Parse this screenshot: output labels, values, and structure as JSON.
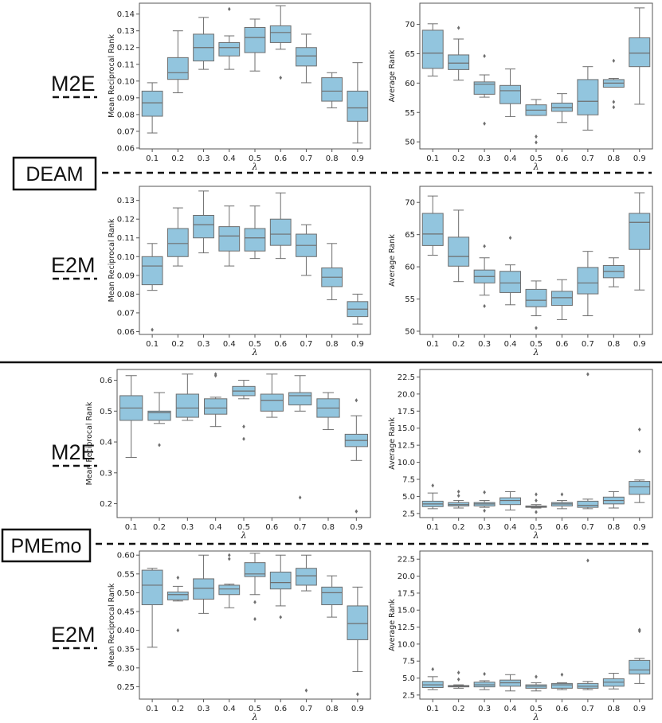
{
  "labels": {
    "deam": "DEAM",
    "pmemo": "PMEmo",
    "m2e": "M2E",
    "e2m": "E2M"
  },
  "colors": {
    "box": "#92c5de",
    "edge": "#6e6e6e",
    "frame": "#555555"
  },
  "chart_data": [
    {
      "id": "deam-m2e-mrr",
      "type": "box",
      "xlabel": "λ",
      "ylabel": "Mean Reciprocal Rank",
      "categories": [
        "0.1",
        "0.2",
        "0.3",
        "0.4",
        "0.5",
        "0.6",
        "0.7",
        "0.8",
        "0.9"
      ],
      "ylim": [
        0.0595,
        0.1465
      ],
      "yticks": [
        {
          "v": 0.06,
          "t": "0.06"
        },
        {
          "v": 0.07,
          "t": "0.07"
        },
        {
          "v": 0.08,
          "t": "0.08"
        },
        {
          "v": 0.09,
          "t": "0.09"
        },
        {
          "v": 0.1,
          "t": "0.10"
        },
        {
          "v": 0.11,
          "t": "0.11"
        },
        {
          "v": 0.12,
          "t": "0.12"
        },
        {
          "v": 0.13,
          "t": "0.13"
        },
        {
          "v": 0.14,
          "t": "0.14"
        }
      ],
      "boxes": [
        {
          "min": 0.069,
          "q1": 0.079,
          "med": 0.087,
          "q3": 0.094,
          "max": 0.099,
          "fliers": []
        },
        {
          "min": 0.093,
          "q1": 0.101,
          "med": 0.105,
          "q3": 0.114,
          "max": 0.13,
          "fliers": []
        },
        {
          "min": 0.107,
          "q1": 0.112,
          "med": 0.12,
          "q3": 0.128,
          "max": 0.138,
          "fliers": []
        },
        {
          "min": 0.107,
          "q1": 0.115,
          "med": 0.12,
          "q3": 0.123,
          "max": 0.127,
          "fliers": [
            0.143
          ]
        },
        {
          "min": 0.106,
          "q1": 0.117,
          "med": 0.126,
          "q3": 0.132,
          "max": 0.137,
          "fliers": []
        },
        {
          "min": 0.119,
          "q1": 0.123,
          "med": 0.129,
          "q3": 0.133,
          "max": 0.145,
          "fliers": [
            0.102
          ]
        },
        {
          "min": 0.099,
          "q1": 0.109,
          "med": 0.115,
          "q3": 0.12,
          "max": 0.128,
          "fliers": []
        },
        {
          "min": 0.084,
          "q1": 0.088,
          "med": 0.094,
          "q3": 0.102,
          "max": 0.105,
          "fliers": []
        },
        {
          "min": 0.063,
          "q1": 0.076,
          "med": 0.084,
          "q3": 0.094,
          "max": 0.111,
          "fliers": []
        }
      ]
    },
    {
      "id": "deam-m2e-ar",
      "type": "box",
      "xlabel": "λ",
      "ylabel": "Average Rank",
      "categories": [
        "0.1",
        "0.2",
        "0.3",
        "0.4",
        "0.5",
        "0.6",
        "0.7",
        "0.8",
        "0.9"
      ],
      "ylim": [
        48.8,
        73.6
      ],
      "yticks": [
        {
          "v": 50,
          "t": "50"
        },
        {
          "v": 55,
          "t": "55"
        },
        {
          "v": 60,
          "t": "60"
        },
        {
          "v": 65,
          "t": "65"
        },
        {
          "v": 70,
          "t": "70"
        }
      ],
      "boxes": [
        {
          "min": 61.2,
          "q1": 62.5,
          "med": 65.1,
          "q3": 69.0,
          "max": 70.1,
          "fliers": []
        },
        {
          "min": 60.5,
          "q1": 62.3,
          "med": 63.4,
          "q3": 64.8,
          "max": 67.5,
          "fliers": [
            69.4
          ]
        },
        {
          "min": 57.6,
          "q1": 58.1,
          "med": 59.8,
          "q3": 60.2,
          "max": 61.4,
          "fliers": [
            53.1,
            64.6
          ]
        },
        {
          "min": 54.3,
          "q1": 56.5,
          "med": 58.7,
          "q3": 59.6,
          "max": 62.4,
          "fliers": []
        },
        {
          "min": 54.5,
          "q1": 54.5,
          "med": 55.4,
          "q3": 56.3,
          "max": 57.2,
          "fliers": [
            50.9,
            49.9
          ]
        },
        {
          "min": 53.3,
          "q1": 55.2,
          "med": 55.8,
          "q3": 56.6,
          "max": 58.2,
          "fliers": []
        },
        {
          "min": 52.0,
          "q1": 54.6,
          "med": 56.9,
          "q3": 60.6,
          "max": 62.8,
          "fliers": []
        },
        {
          "min": 59.3,
          "q1": 59.3,
          "med": 60.0,
          "q3": 60.6,
          "max": 60.8,
          "fliers": [
            63.8,
            56.8,
            55.9
          ]
        },
        {
          "min": 56.4,
          "q1": 62.8,
          "med": 65.1,
          "q3": 67.7,
          "max": 72.8,
          "fliers": []
        }
      ]
    },
    {
      "id": "deam-e2m-mrr",
      "type": "box",
      "xlabel": "λ",
      "ylabel": "Mean Reciprocal Rank",
      "categories": [
        "0.1",
        "0.2",
        "0.3",
        "0.4",
        "0.5",
        "0.6",
        "0.7",
        "0.8",
        "0.9"
      ],
      "ylim": [
        0.0585,
        0.1375
      ],
      "yticks": [
        {
          "v": 0.06,
          "t": "0.06"
        },
        {
          "v": 0.07,
          "t": "0.07"
        },
        {
          "v": 0.08,
          "t": "0.08"
        },
        {
          "v": 0.09,
          "t": "0.09"
        },
        {
          "v": 0.1,
          "t": "0.10"
        },
        {
          "v": 0.11,
          "t": "0.11"
        },
        {
          "v": 0.12,
          "t": "0.12"
        },
        {
          "v": 0.13,
          "t": "0.13"
        }
      ],
      "boxes": [
        {
          "min": 0.082,
          "q1": 0.085,
          "med": 0.095,
          "q3": 0.1,
          "max": 0.107,
          "fliers": [
            0.061
          ]
        },
        {
          "min": 0.095,
          "q1": 0.1,
          "med": 0.107,
          "q3": 0.115,
          "max": 0.126,
          "fliers": []
        },
        {
          "min": 0.102,
          "q1": 0.11,
          "med": 0.117,
          "q3": 0.122,
          "max": 0.135,
          "fliers": []
        },
        {
          "min": 0.095,
          "q1": 0.103,
          "med": 0.111,
          "q3": 0.116,
          "max": 0.127,
          "fliers": []
        },
        {
          "min": 0.099,
          "q1": 0.103,
          "med": 0.11,
          "q3": 0.115,
          "max": 0.127,
          "fliers": []
        },
        {
          "min": 0.099,
          "q1": 0.106,
          "med": 0.112,
          "q3": 0.12,
          "max": 0.134,
          "fliers": []
        },
        {
          "min": 0.09,
          "q1": 0.1,
          "med": 0.106,
          "q3": 0.112,
          "max": 0.117,
          "fliers": []
        },
        {
          "min": 0.077,
          "q1": 0.084,
          "med": 0.089,
          "q3": 0.094,
          "max": 0.107,
          "fliers": []
        },
        {
          "min": 0.064,
          "q1": 0.068,
          "med": 0.072,
          "q3": 0.076,
          "max": 0.08,
          "fliers": []
        }
      ]
    },
    {
      "id": "deam-e2m-ar",
      "type": "box",
      "xlabel": "λ",
      "ylabel": "Average Rank",
      "categories": [
        "0.1",
        "0.2",
        "0.3",
        "0.4",
        "0.5",
        "0.6",
        "0.7",
        "0.8",
        "0.9"
      ],
      "ylim": [
        49.5,
        72.5
      ],
      "yticks": [
        {
          "v": 50,
          "t": "50"
        },
        {
          "v": 55,
          "t": "55"
        },
        {
          "v": 60,
          "t": "60"
        },
        {
          "v": 65,
          "t": "65"
        },
        {
          "v": 70,
          "t": "70"
        }
      ],
      "boxes": [
        {
          "min": 61.8,
          "q1": 63.3,
          "med": 65.1,
          "q3": 68.3,
          "max": 71.0,
          "fliers": []
        },
        {
          "min": 57.7,
          "q1": 60.1,
          "med": 61.6,
          "q3": 64.6,
          "max": 68.8,
          "fliers": []
        },
        {
          "min": 55.6,
          "q1": 57.5,
          "med": 58.5,
          "q3": 59.5,
          "max": 61.4,
          "fliers": [
            53.9,
            63.2
          ]
        },
        {
          "min": 54.1,
          "q1": 56.0,
          "med": 57.5,
          "q3": 59.3,
          "max": 60.3,
          "fliers": [
            64.5
          ]
        },
        {
          "min": 52.4,
          "q1": 53.8,
          "med": 54.8,
          "q3": 56.5,
          "max": 57.8,
          "fliers": [
            50.5
          ]
        },
        {
          "min": 51.8,
          "q1": 54.0,
          "med": 55.2,
          "q3": 56.2,
          "max": 58.0,
          "fliers": []
        },
        {
          "min": 52.4,
          "q1": 55.8,
          "med": 57.5,
          "q3": 59.9,
          "max": 62.4,
          "fliers": []
        },
        {
          "min": 56.9,
          "q1": 58.3,
          "med": 59.3,
          "q3": 60.2,
          "max": 61.4,
          "fliers": []
        },
        {
          "min": 56.4,
          "q1": 62.7,
          "med": 66.9,
          "q3": 68.3,
          "max": 71.5,
          "fliers": []
        }
      ]
    },
    {
      "id": "pmemo-m2e-mrr",
      "type": "box",
      "xlabel": "λ",
      "ylabel": "Mean Reciprocal Rank",
      "categories": [
        "0.1",
        "0.2",
        "0.3",
        "0.4",
        "0.5",
        "0.6",
        "0.7",
        "0.8",
        "0.9"
      ],
      "ylim": [
        0.155,
        0.635
      ],
      "yticks": [
        {
          "v": 0.2,
          "t": "0.2"
        },
        {
          "v": 0.3,
          "t": "0.3"
        },
        {
          "v": 0.4,
          "t": "0.4"
        },
        {
          "v": 0.5,
          "t": "0.5"
        },
        {
          "v": 0.6,
          "t": "0.6"
        }
      ],
      "boxes": [
        {
          "min": 0.35,
          "q1": 0.47,
          "med": 0.51,
          "q3": 0.55,
          "max": 0.615,
          "fliers": []
        },
        {
          "min": 0.46,
          "q1": 0.47,
          "med": 0.495,
          "q3": 0.5,
          "max": 0.56,
          "fliers": [
            0.39
          ]
        },
        {
          "min": 0.47,
          "q1": 0.48,
          "med": 0.51,
          "q3": 0.555,
          "max": 0.62,
          "fliers": []
        },
        {
          "min": 0.45,
          "q1": 0.49,
          "med": 0.51,
          "q3": 0.54,
          "max": 0.545,
          "fliers": [
            0.62,
            0.615
          ]
        },
        {
          "min": 0.54,
          "q1": 0.55,
          "med": 0.565,
          "q3": 0.58,
          "max": 0.6,
          "fliers": [
            0.45,
            0.41
          ]
        },
        {
          "min": 0.48,
          "q1": 0.5,
          "med": 0.535,
          "q3": 0.555,
          "max": 0.62,
          "fliers": []
        },
        {
          "min": 0.5,
          "q1": 0.52,
          "med": 0.55,
          "q3": 0.56,
          "max": 0.615,
          "fliers": [
            0.22
          ]
        },
        {
          "min": 0.44,
          "q1": 0.48,
          "med": 0.51,
          "q3": 0.54,
          "max": 0.56,
          "fliers": []
        },
        {
          "min": 0.34,
          "q1": 0.385,
          "med": 0.405,
          "q3": 0.425,
          "max": 0.485,
          "fliers": [
            0.535,
            0.175
          ]
        }
      ]
    },
    {
      "id": "pmemo-m2e-ar",
      "type": "box",
      "xlabel": "λ",
      "ylabel": "Average Rank",
      "categories": [
        "0.1",
        "0.2",
        "0.3",
        "0.4",
        "0.5",
        "0.6",
        "0.7",
        "0.8",
        "0.9"
      ],
      "ylim": [
        1.9,
        23.6
      ],
      "yticks": [
        {
          "v": 2.5,
          "t": "2.5"
        },
        {
          "v": 5,
          "t": "5.0"
        },
        {
          "v": 7.5,
          "t": "7.5"
        },
        {
          "v": 10,
          "t": "10.0"
        },
        {
          "v": 12.5,
          "t": "12.5"
        },
        {
          "v": 15,
          "t": "15.0"
        },
        {
          "v": 17.5,
          "t": "17.5"
        },
        {
          "v": 20,
          "t": "20.0"
        },
        {
          "v": 22.5,
          "t": "22.5"
        }
      ],
      "boxes": [
        {
          "min": 3.2,
          "q1": 3.5,
          "med": 3.9,
          "q3": 4.3,
          "max": 5.5,
          "fliers": [
            6.6
          ]
        },
        {
          "min": 3.3,
          "q1": 3.6,
          "med": 3.8,
          "q3": 4.1,
          "max": 4.4,
          "fliers": [
            5.7,
            5.1
          ]
        },
        {
          "min": 3.4,
          "q1": 3.6,
          "med": 3.9,
          "q3": 4.1,
          "max": 4.4,
          "fliers": [
            5.6,
            2.9
          ]
        },
        {
          "min": 3.0,
          "q1": 3.8,
          "med": 4.4,
          "q3": 4.8,
          "max": 5.7,
          "fliers": []
        },
        {
          "min": 3.3,
          "q1": 3.4,
          "med": 3.5,
          "q3": 3.6,
          "max": 3.8,
          "fliers": [
            5.3,
            4.4,
            2.7
          ]
        },
        {
          "min": 3.2,
          "q1": 3.6,
          "med": 3.9,
          "q3": 4.1,
          "max": 4.4,
          "fliers": [
            5.3
          ]
        },
        {
          "min": 3.2,
          "q1": 3.4,
          "med": 3.7,
          "q3": 4.3,
          "max": 4.6,
          "fliers": [
            22.9
          ]
        },
        {
          "min": 3.3,
          "q1": 3.9,
          "med": 4.4,
          "q3": 4.9,
          "max": 5.7,
          "fliers": []
        },
        {
          "min": 4.1,
          "q1": 5.3,
          "med": 6.4,
          "q3": 7.2,
          "max": 7.4,
          "fliers": [
            14.8,
            11.6
          ]
        }
      ]
    },
    {
      "id": "pmemo-e2m-mrr",
      "type": "box",
      "xlabel": "λ",
      "ylabel": "Mean Reciprocal Rank",
      "categories": [
        "0.1",
        "0.2",
        "0.3",
        "0.4",
        "0.5",
        "0.6",
        "0.7",
        "0.8",
        "0.9"
      ],
      "ylim": [
        0.217,
        0.611
      ],
      "yticks": [
        {
          "v": 0.25,
          "t": "0.25"
        },
        {
          "v": 0.3,
          "t": "0.30"
        },
        {
          "v": 0.35,
          "t": "0.35"
        },
        {
          "v": 0.4,
          "t": "0.40"
        },
        {
          "v": 0.45,
          "t": "0.45"
        },
        {
          "v": 0.5,
          "t": "0.50"
        },
        {
          "v": 0.55,
          "t": "0.55"
        },
        {
          "v": 0.6,
          "t": "0.60"
        }
      ],
      "boxes": [
        {
          "min": 0.355,
          "q1": 0.468,
          "med": 0.52,
          "q3": 0.56,
          "max": 0.565,
          "fliers": []
        },
        {
          "min": 0.478,
          "q1": 0.481,
          "med": 0.495,
          "q3": 0.502,
          "max": 0.517,
          "fliers": [
            0.54,
            0.4
          ]
        },
        {
          "min": 0.445,
          "q1": 0.483,
          "med": 0.512,
          "q3": 0.537,
          "max": 0.6,
          "fliers": []
        },
        {
          "min": 0.46,
          "q1": 0.495,
          "med": 0.51,
          "q3": 0.52,
          "max": 0.523,
          "fliers": [
            0.6,
            0.59
          ]
        },
        {
          "min": 0.495,
          "q1": 0.543,
          "med": 0.55,
          "q3": 0.58,
          "max": 0.605,
          "fliers": [
            0.475,
            0.43
          ]
        },
        {
          "min": 0.465,
          "q1": 0.51,
          "med": 0.527,
          "q3": 0.555,
          "max": 0.6,
          "fliers": [
            0.435
          ]
        },
        {
          "min": 0.505,
          "q1": 0.52,
          "med": 0.545,
          "q3": 0.565,
          "max": 0.6,
          "fliers": [
            0.24
          ]
        },
        {
          "min": 0.435,
          "q1": 0.468,
          "med": 0.5,
          "q3": 0.515,
          "max": 0.545,
          "fliers": []
        },
        {
          "min": 0.29,
          "q1": 0.375,
          "med": 0.418,
          "q3": 0.465,
          "max": 0.515,
          "fliers": [
            0.23
          ]
        }
      ]
    },
    {
      "id": "pmemo-e2m-ar",
      "type": "box",
      "xlabel": "λ",
      "ylabel": "Average Rank",
      "categories": [
        "0.1",
        "0.2",
        "0.3",
        "0.4",
        "0.5",
        "0.6",
        "0.7",
        "0.8",
        "0.9"
      ],
      "ylim": [
        1.9,
        23.7
      ],
      "yticks": [
        {
          "v": 2.5,
          "t": "2.5"
        },
        {
          "v": 5,
          "t": "5.0"
        },
        {
          "v": 7.5,
          "t": "7.5"
        },
        {
          "v": 10,
          "t": "10.0"
        },
        {
          "v": 12.5,
          "t": "12.5"
        },
        {
          "v": 15,
          "t": "15.0"
        },
        {
          "v": 17.5,
          "t": "17.5"
        },
        {
          "v": 20,
          "t": "20.0"
        },
        {
          "v": 22.5,
          "t": "22.5"
        }
      ],
      "boxes": [
        {
          "min": 3.3,
          "q1": 3.6,
          "med": 4.0,
          "q3": 4.5,
          "max": 5.2,
          "fliers": [
            6.3
          ]
        },
        {
          "min": 3.5,
          "q1": 3.7,
          "med": 3.8,
          "q3": 3.9,
          "max": 4.0,
          "fliers": [
            5.8,
            4.8
          ]
        },
        {
          "min": 3.3,
          "q1": 3.7,
          "med": 4.0,
          "q3": 4.4,
          "max": 4.6,
          "fliers": [
            5.6
          ]
        },
        {
          "min": 3.1,
          "q1": 3.8,
          "med": 4.3,
          "q3": 4.7,
          "max": 5.5,
          "fliers": []
        },
        {
          "min": 3.1,
          "q1": 3.5,
          "med": 3.8,
          "q3": 4.0,
          "max": 4.3,
          "fliers": [
            5.2
          ]
        },
        {
          "min": 3.3,
          "q1": 3.5,
          "med": 4.0,
          "q3": 4.2,
          "max": 4.3,
          "fliers": [
            5.5
          ]
        },
        {
          "min": 3.3,
          "q1": 3.5,
          "med": 3.8,
          "q3": 4.2,
          "max": 4.5,
          "fliers": [
            22.3
          ]
        },
        {
          "min": 3.4,
          "q1": 3.8,
          "med": 4.4,
          "q3": 4.9,
          "max": 5.7,
          "fliers": []
        },
        {
          "min": 4.2,
          "q1": 5.6,
          "med": 6.2,
          "q3": 7.6,
          "max": 7.9,
          "fliers": [
            12.1,
            11.9
          ]
        }
      ]
    }
  ]
}
